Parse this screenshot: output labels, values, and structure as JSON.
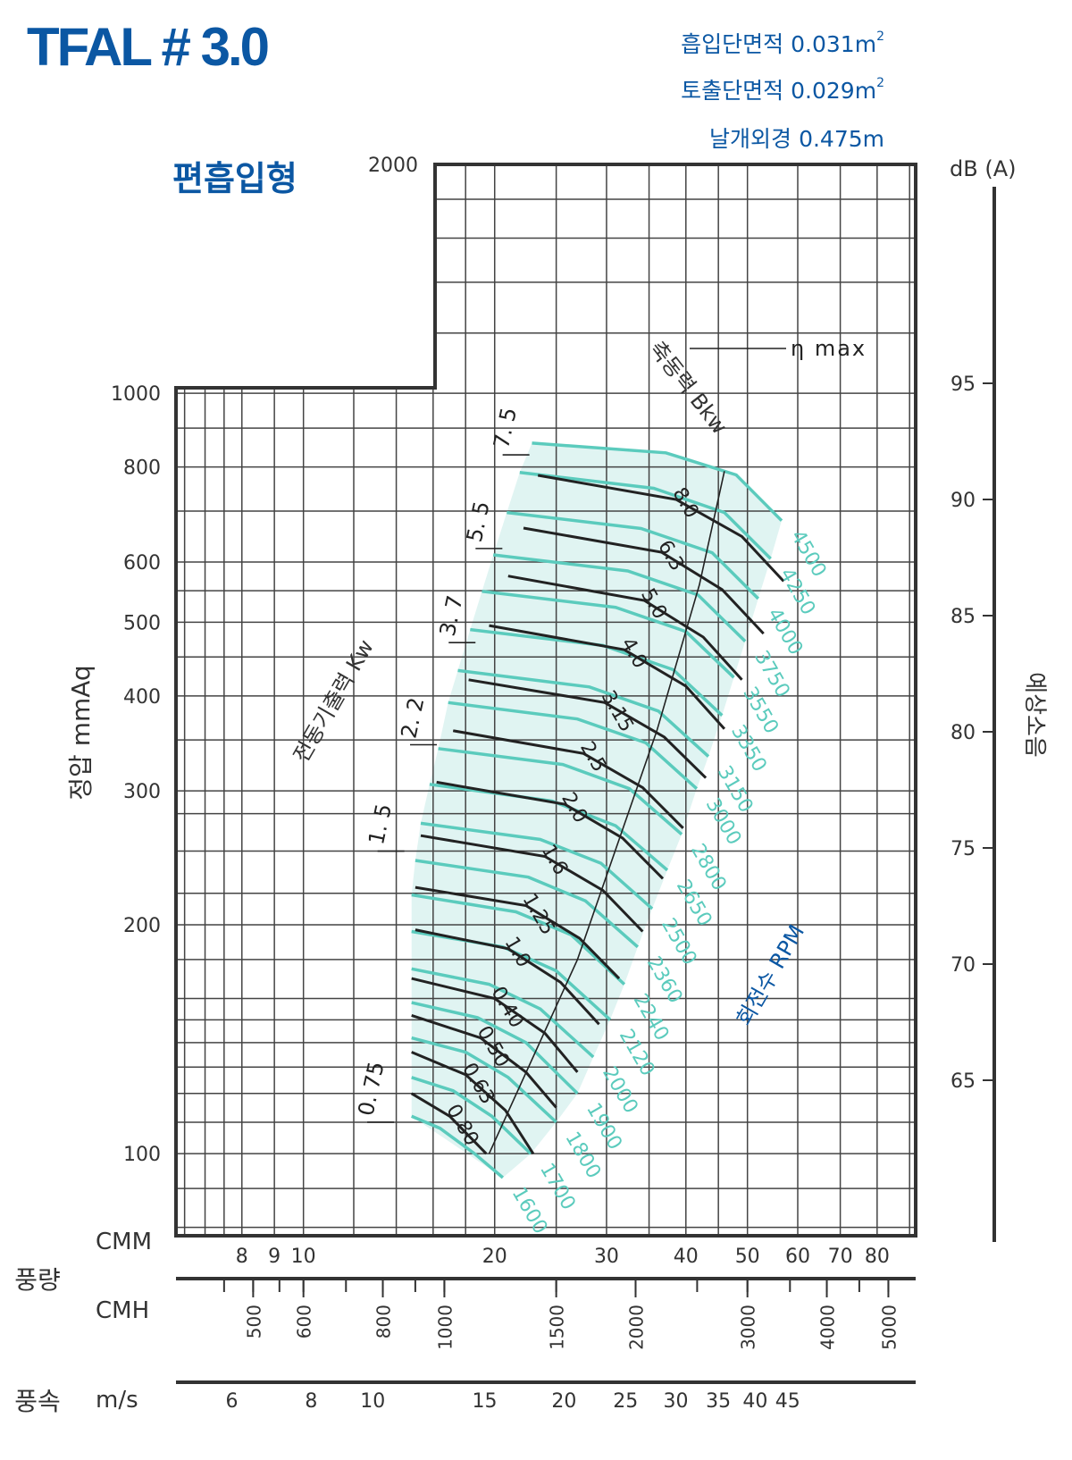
{
  "title": "TFAL # 3.0",
  "specs": [
    {
      "label": "흡입단면적",
      "value": "0.031m",
      "sup": "2"
    },
    {
      "label": "토출단면적",
      "value": "0.029m",
      "sup": "2"
    },
    {
      "label": "날개외경",
      "value": "0.475m",
      "sup": ""
    }
  ],
  "colors": {
    "accent": "#0b57a3",
    "teal": "#5bcbbd",
    "fill": "#a6e0d9",
    "line": "#222222"
  },
  "chart_data": {
    "type": "line",
    "subtitle": "편흡입형",
    "ylabel": "정압 mmAq",
    "y_scale": "log",
    "y_range": [
      78,
      2000
    ],
    "y_ticks": [
      100,
      200,
      300,
      400,
      500,
      600,
      800,
      1000,
      2000
    ],
    "x_scale": "log",
    "x_range": [
      6.3,
      92
    ],
    "cmm_label": "CMM",
    "cmm_ticks": [
      8,
      9,
      10,
      20,
      30,
      40,
      50,
      60,
      70,
      80
    ],
    "flow_label": "풍량",
    "cmh_label": "CMH",
    "cmh_ticks": [
      500,
      600,
      800,
      1000,
      1500,
      2000,
      3000,
      4000,
      5000
    ],
    "velocity_group_label": "풍속",
    "velocity_unit": "m/s",
    "velocity_ticks": [
      6,
      8,
      10,
      15,
      20,
      25,
      30,
      35,
      40,
      45
    ],
    "db_label": "dB (A)",
    "db_ticks": [
      95,
      90,
      85,
      80,
      75,
      70,
      65
    ],
    "noise_label": "예상소음",
    "rpm_label": "회전수 RPM",
    "rpm_curves": [
      {
        "label": "1600",
        "points": [
          [
            14.8,
            112
          ],
          [
            16.4,
            108
          ],
          [
            18.6,
            100
          ],
          [
            20.6,
            93
          ]
        ]
      },
      {
        "label": "1700",
        "points": [
          [
            14.8,
            126
          ],
          [
            17.2,
            121
          ],
          [
            19.8,
            112
          ],
          [
            22.8,
            100
          ]
        ]
      },
      {
        "label": "1800",
        "points": [
          [
            14.8,
            142
          ],
          [
            18.0,
            136
          ],
          [
            21.0,
            126
          ],
          [
            25.0,
            110
          ]
        ]
      },
      {
        "label": "1900",
        "points": [
          [
            14.8,
            158
          ],
          [
            18.8,
            151
          ],
          [
            22.4,
            140
          ],
          [
            27.0,
            120
          ]
        ]
      },
      {
        "label": "2000",
        "points": [
          [
            14.8,
            175
          ],
          [
            19.6,
            167
          ],
          [
            23.6,
            155
          ],
          [
            28.6,
            134
          ]
        ]
      },
      {
        "label": "2120",
        "points": [
          [
            14.8,
            196
          ],
          [
            20.6,
            187
          ],
          [
            25.0,
            174
          ],
          [
            30.4,
            150
          ]
        ]
      },
      {
        "label": "2240",
        "points": [
          [
            14.8,
            219
          ],
          [
            21.6,
            208
          ],
          [
            26.4,
            194
          ],
          [
            32.0,
            167
          ]
        ]
      },
      {
        "label": "2360",
        "points": [
          [
            15.0,
            243
          ],
          [
            22.6,
            231
          ],
          [
            27.8,
            215
          ],
          [
            33.6,
            187
          ]
        ]
      },
      {
        "label": "2500",
        "points": [
          [
            15.3,
            272
          ],
          [
            23.6,
            259
          ],
          [
            29.4,
            241
          ],
          [
            35.4,
            210
          ]
        ]
      },
      {
        "label": "2650",
        "points": [
          [
            15.8,
            306
          ],
          [
            24.6,
            291
          ],
          [
            31.0,
            270
          ],
          [
            37.4,
            236
          ]
        ]
      },
      {
        "label": "2800",
        "points": [
          [
            16.3,
            341
          ],
          [
            25.6,
            325
          ],
          [
            32.6,
            302
          ],
          [
            39.4,
            263
          ]
        ]
      },
      {
        "label": "3000",
        "points": [
          [
            16.9,
            392
          ],
          [
            27.0,
            373
          ],
          [
            34.6,
            347
          ],
          [
            41.6,
            302
          ]
        ]
      },
      {
        "label": "3150",
        "points": [
          [
            17.5,
            432
          ],
          [
            28.2,
            411
          ],
          [
            36.2,
            382
          ],
          [
            43.4,
            333
          ]
        ]
      },
      {
        "label": "3350",
        "points": [
          [
            18.3,
            489
          ],
          [
            29.6,
            466
          ],
          [
            38.2,
            433
          ],
          [
            45.6,
            377
          ]
        ]
      },
      {
        "label": "3550",
        "points": [
          [
            19.1,
            549
          ],
          [
            31.0,
            523
          ],
          [
            40.0,
            486
          ],
          [
            47.6,
            423
          ]
        ]
      },
      {
        "label": "3750",
        "points": [
          [
            19.9,
            613
          ],
          [
            32.4,
            584
          ],
          [
            41.8,
            543
          ],
          [
            49.6,
            472
          ]
        ]
      },
      {
        "label": "4000",
        "points": [
          [
            20.9,
            697
          ],
          [
            34.0,
            664
          ],
          [
            44.0,
            617
          ],
          [
            52.0,
            537
          ]
        ]
      },
      {
        "label": "4250",
        "points": [
          [
            21.9,
            787
          ],
          [
            35.6,
            750
          ],
          [
            46.0,
            697
          ],
          [
            54.4,
            606
          ]
        ]
      },
      {
        "label": "4500",
        "points": [
          [
            22.9,
            860
          ],
          [
            37.2,
            835
          ],
          [
            48.0,
            781
          ],
          [
            56.6,
            680
          ]
        ]
      }
    ],
    "shaft_power_label": "축동력 Bkw",
    "shaft_power_curves": [
      {
        "label": "0.80",
        "points": [
          [
            14.8,
            120
          ],
          [
            17.0,
            112
          ],
          [
            19.4,
            100
          ]
        ]
      },
      {
        "label": "0.63",
        "points": [
          [
            14.8,
            136
          ],
          [
            18.0,
            127
          ],
          [
            20.8,
            114
          ],
          [
            23.0,
            100
          ]
        ]
      },
      {
        "label": "0.50",
        "points": [
          [
            14.8,
            152
          ],
          [
            19.0,
            142
          ],
          [
            22.4,
            128
          ],
          [
            25.0,
            115
          ]
        ]
      },
      {
        "label": "0.40",
        "points": [
          [
            14.8,
            170
          ],
          [
            20.0,
            160
          ],
          [
            24.0,
            144
          ],
          [
            27.0,
            128
          ]
        ]
      },
      {
        "label": "1.0",
        "points": [
          [
            15.0,
            197
          ],
          [
            21.0,
            186
          ],
          [
            25.4,
            168
          ],
          [
            29.2,
            148
          ]
        ]
      },
      {
        "label": "1.25",
        "points": [
          [
            15.0,
            224
          ],
          [
            22.4,
            212
          ],
          [
            27.2,
            192
          ],
          [
            31.4,
            170
          ]
        ]
      },
      {
        "label": "1.6",
        "points": [
          [
            15.3,
            262
          ],
          [
            24.0,
            246
          ],
          [
            29.6,
            222
          ],
          [
            34.2,
            196
          ]
        ]
      },
      {
        "label": "2.0",
        "points": [
          [
            16.2,
            308
          ],
          [
            25.8,
            288
          ],
          [
            31.8,
            260
          ],
          [
            36.8,
            230
          ]
        ]
      },
      {
        "label": "2.5",
        "points": [
          [
            17.2,
            360
          ],
          [
            27.6,
            336
          ],
          [
            34.2,
            303
          ],
          [
            39.6,
            268
          ]
        ]
      },
      {
        "label": "3.15",
        "points": [
          [
            18.2,
            420
          ],
          [
            29.8,
            392
          ],
          [
            37.0,
            353
          ],
          [
            43.0,
            312
          ]
        ]
      },
      {
        "label": "4.0",
        "points": [
          [
            19.6,
            495
          ],
          [
            32.0,
            460
          ],
          [
            40.0,
            412
          ],
          [
            46.0,
            362
          ]
        ]
      },
      {
        "label": "5.0",
        "points": [
          [
            21.0,
            575
          ],
          [
            34.4,
            534
          ],
          [
            42.6,
            478
          ],
          [
            49.0,
            420
          ]
        ]
      },
      {
        "label": "6.3",
        "points": [
          [
            22.2,
            665
          ],
          [
            36.6,
            618
          ],
          [
            45.6,
            552
          ],
          [
            53.0,
            483
          ]
        ]
      },
      {
        "label": "8.0",
        "points": [
          [
            23.4,
            780
          ],
          [
            38.6,
            725
          ],
          [
            49.0,
            648
          ],
          [
            57.0,
            566
          ]
        ]
      }
    ],
    "motor_output_label": "전동기출력 Kw",
    "motor_output_ticks": [
      "0. 75",
      "1. 5",
      "2. 2",
      "3. 7",
      "5. 5",
      "7. 5"
    ],
    "efficiency_label": "η max",
    "efficiency_line": [
      [
        19.6,
        100
      ],
      [
        27.0,
        180
      ],
      [
        36.0,
        360
      ],
      [
        42.0,
        560
      ],
      [
        46.0,
        790
      ]
    ]
  }
}
